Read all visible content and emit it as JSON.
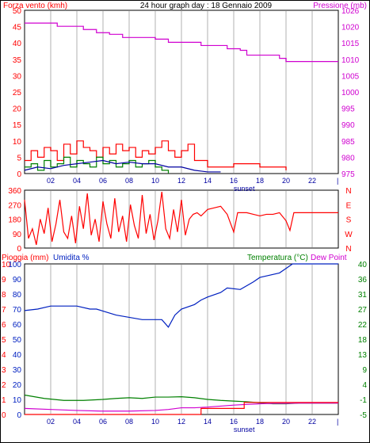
{
  "colors": {
    "wind": "#ff0000",
    "gust_green": "#008000",
    "navy": "#0000a0",
    "pressure": "#d000d0",
    "temp": "#008000",
    "humidity": "#0020c0",
    "dew": "#d000d0",
    "rain": "#ff0000",
    "sunset": "#0000a0",
    "grid": "#d8d8d8"
  },
  "header": {
    "left": "Forza vento (kmh)",
    "center": "24 hour graph day : 18 Gennaio 2009",
    "right": "Pressione (mb)"
  },
  "mid_header": {
    "left1": "Pioggia (mm)",
    "left2": "Umidita %",
    "right1": "Temperatura (°C)",
    "right2": "Dew Point"
  },
  "x_ticks": [
    "02",
    "04",
    "06",
    "08",
    "10",
    "12",
    "14",
    "16",
    "18",
    "20",
    "22"
  ],
  "sunset_label": "sunset",
  "chart_data": [
    {
      "type": "line",
      "title": "24 hour graph day : 18 Gennaio 2009",
      "x_range": [
        0,
        24
      ],
      "y_left": {
        "label": "Forza vento (kmh)",
        "range": [
          0,
          50
        ],
        "ticks": [
          "0",
          "5",
          "10",
          "15",
          "20",
          "25",
          "30",
          "35",
          "40",
          "45",
          "50"
        ]
      },
      "y_right": {
        "label": "Pressione (mb)",
        "range": [
          975,
          1026
        ],
        "ticks": [
          "975",
          "980",
          "985",
          "990",
          "995",
          "1000",
          "1005",
          "1010",
          "1015",
          "1020",
          "1026"
        ]
      },
      "sunset_hour": 16.8,
      "series": [
        {
          "name": "Pressione (mb)",
          "axis": "right",
          "x": [
            0,
            2.5,
            4.5,
            5.5,
            6.5,
            7.5,
            10,
            11,
            13.5,
            15.5,
            16.5,
            17,
            19.5,
            20,
            24
          ],
          "y": [
            1022,
            1021,
            1020,
            1019,
            1018.5,
            1017.5,
            1017,
            1016,
            1015,
            1014,
            1013.5,
            1012,
            1011,
            1010,
            1010
          ]
        },
        {
          "name": "Forza vento (kmh)",
          "axis": "left",
          "x": [
            0,
            0.5,
            1,
            1.5,
            2,
            2.5,
            3,
            3.5,
            4,
            4.5,
            5,
            5.5,
            6,
            6.5,
            7,
            7.5,
            8,
            8.5,
            9,
            9.5,
            10,
            10.5,
            11,
            11.5,
            12,
            12.5,
            13,
            14,
            15,
            16,
            18,
            20
          ],
          "y": [
            4,
            7,
            5,
            8,
            7,
            4,
            9,
            6,
            10,
            8,
            7,
            5,
            8,
            6,
            9,
            7,
            8,
            5,
            7,
            6,
            8,
            10,
            7,
            5,
            7,
            9,
            4,
            2,
            2,
            3,
            2,
            1
          ]
        },
        {
          "name": "gust (green)",
          "axis": "left",
          "x": [
            0,
            0.5,
            1,
            1.5,
            2,
            2.5,
            3,
            3.5,
            4,
            4.5,
            5,
            5.5,
            6,
            6.5,
            7,
            7.5,
            8,
            8.5,
            9,
            9.5,
            10,
            10.5,
            11
          ],
          "y": [
            2,
            3,
            1,
            4,
            2,
            3,
            5,
            2,
            4,
            3,
            2,
            5,
            3,
            4,
            2,
            3,
            4,
            2,
            3,
            4,
            2,
            1,
            0
          ]
        },
        {
          "name": "average (navy)",
          "axis": "left",
          "x": [
            0,
            1,
            2,
            3,
            4,
            5,
            6,
            7,
            8,
            9,
            10,
            11,
            12,
            13,
            14,
            15
          ],
          "y": [
            1,
            2,
            1.5,
            2.5,
            3,
            3.5,
            4,
            3,
            3.5,
            3,
            3,
            2,
            2,
            1,
            0.5,
            0.5
          ]
        }
      ]
    },
    {
      "type": "line",
      "x_range": [
        0,
        24
      ],
      "y_left": {
        "range": [
          0,
          360
        ],
        "ticks": [
          "0",
          "90",
          "180",
          "270",
          "360"
        ]
      },
      "y_right": {
        "ticks": [
          "N",
          "W",
          "S",
          "E",
          "N"
        ]
      },
      "series": [
        {
          "name": "direction",
          "x": [
            0,
            0.3,
            0.6,
            0.9,
            1.2,
            1.5,
            1.8,
            2.1,
            2.4,
            2.7,
            3.0,
            3.3,
            3.6,
            3.9,
            4.2,
            4.5,
            4.8,
            5.1,
            5.4,
            5.7,
            6.0,
            6.3,
            6.6,
            6.9,
            7.2,
            7.5,
            7.8,
            8.1,
            8.4,
            8.7,
            9.0,
            9.3,
            9.6,
            9.9,
            10.2,
            10.5,
            10.8,
            11.1,
            11.4,
            11.7,
            12.0,
            12.3,
            12.6,
            12.9,
            13.2,
            13.5,
            14.0,
            14.5,
            15.0,
            15.5,
            16.0,
            16.3,
            16.6,
            17.0,
            17.5,
            18.0,
            18.5,
            19.0,
            19.5,
            20.0,
            20.3,
            20.6,
            24.0
          ],
          "y": [
            300,
            60,
            120,
            20,
            180,
            90,
            250,
            40,
            150,
            300,
            100,
            60,
            200,
            30,
            260,
            120,
            340,
            80,
            180,
            40,
            290,
            150,
            60,
            310,
            100,
            200,
            40,
            270,
            140,
            60,
            330,
            90,
            210,
            50,
            170,
            350,
            120,
            60,
            240,
            100,
            300,
            80,
            180,
            210,
            220,
            200,
            240,
            250,
            260,
            210,
            100,
            220,
            220,
            220,
            210,
            200,
            210,
            210,
            220,
            170,
            110,
            220,
            220
          ]
        }
      ]
    },
    {
      "type": "line",
      "x_range": [
        0,
        24
      ],
      "y_left_outer": {
        "label": "Pioggia (mm)",
        "range": [
          0,
          10
        ],
        "ticks": [
          "0",
          "1",
          "2",
          "3",
          "4",
          "5",
          "6",
          "7",
          "8",
          "9",
          "10"
        ]
      },
      "y_left_inner": {
        "label": "Umidita %",
        "range": [
          0,
          100
        ],
        "ticks": [
          "0",
          "10",
          "20",
          "30",
          "40",
          "50",
          "60",
          "70",
          "80",
          "90",
          "100"
        ]
      },
      "y_right": {
        "label": "Temperatura (°C)",
        "range": [
          -5,
          40
        ],
        "ticks": [
          "-5",
          "-1",
          "4",
          "9",
          "13",
          "18",
          "22",
          "27",
          "31",
          "36",
          "40"
        ]
      },
      "sunset_hour": 16.8,
      "series": [
        {
          "name": "Umidita %",
          "axis": "inner",
          "x": [
            0,
            1,
            2,
            4,
            5,
            5.5,
            7,
            9,
            10.5,
            11,
            11.5,
            12,
            13,
            13.5,
            14,
            15,
            15.5,
            16.5,
            17.5,
            18,
            18.5,
            19.5,
            20,
            20.5,
            21,
            22,
            23,
            24
          ],
          "y": [
            69,
            70,
            72,
            72,
            70,
            70,
            66,
            63,
            63,
            58,
            66,
            70,
            73,
            76,
            78,
            81,
            84,
            83,
            88,
            91,
            92,
            94,
            97,
            100,
            100,
            100,
            100,
            100
          ]
        },
        {
          "name": "Temperatura (°C)",
          "axis": "right",
          "x": [
            0,
            1.5,
            3,
            4.5,
            6,
            7,
            8,
            9,
            10,
            11,
            12,
            13,
            14,
            15,
            16,
            17,
            18,
            19,
            20,
            21,
            22,
            23,
            24
          ],
          "y": [
            0.8,
            -0.2,
            -0.8,
            -0.8,
            -0.5,
            -0.2,
            0,
            -0.2,
            0.2,
            0.2,
            0.3,
            0,
            -0.5,
            -0.8,
            -1,
            -1.2,
            -1.5,
            -1.8,
            -1.8,
            -1.6,
            -1.6,
            -1.6,
            -1.6
          ]
        },
        {
          "name": "Dew Point",
          "axis": "right",
          "x": [
            0,
            2,
            4,
            6,
            8,
            10,
            11,
            12,
            13,
            14,
            15,
            16,
            17,
            18,
            19,
            20,
            21,
            22,
            23,
            24
          ],
          "y": [
            -3.2,
            -3.5,
            -3.8,
            -4,
            -4,
            -3.8,
            -3.5,
            -3,
            -3,
            -2.8,
            -2.5,
            -2.2,
            -2,
            -1.8,
            -1.7,
            -1.7,
            -1.6,
            -1.6,
            -1.6,
            -1.6
          ]
        },
        {
          "name": "Pioggia (mm)",
          "axis": "outer",
          "x": [
            0,
            13.5,
            13.5,
            16.8,
            16.8,
            24
          ],
          "y": [
            0,
            0,
            0.4,
            0.4,
            0.8,
            0.8
          ]
        }
      ]
    }
  ]
}
